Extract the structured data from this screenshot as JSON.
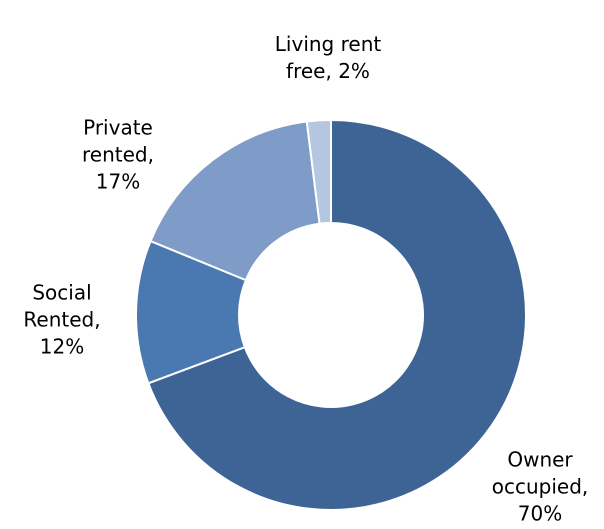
{
  "chart_data": {
    "type": "donut",
    "values": [
      70,
      12,
      17,
      2
    ],
    "value_labels": [
      "Owner occupied, 70%",
      "Social Rented, 12%",
      "Private rented, 17%",
      "Living rent free, 2%"
    ],
    "colors": [
      "#3e6496",
      "#4a78b0",
      "#7f9cc8",
      "#b4c6e0"
    ]
  }
}
